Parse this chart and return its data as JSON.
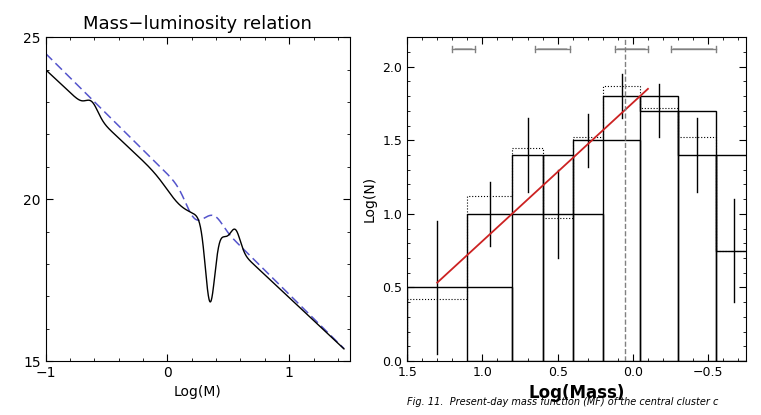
{
  "title_left": "Mass−luminosity relation",
  "xlabel_left": "Log(M)",
  "xlim_left": [
    -1,
    1.5
  ],
  "ylim_left": [
    15,
    25
  ],
  "yticks_left": [
    15,
    20,
    25
  ],
  "xticks_left": [
    -1,
    0,
    1
  ],
  "line1_color": "#000000",
  "line2_color": "#5555cc",
  "title_fontsize": 13,
  "xlabel_right": "Log(Mass)",
  "ylabel_right": "Log(N)",
  "xlim_right": [
    1.5,
    -0.75
  ],
  "ylim_right": [
    0.0,
    2.2
  ],
  "yticks_right": [
    0.0,
    0.5,
    1.0,
    1.5,
    2.0
  ],
  "xticks_right": [
    1.5,
    1.0,
    0.5,
    0.0,
    -0.5
  ],
  "background_color": "#ffffff",
  "caption": "Fig. 11.  Present-day mass function (MF) of the central cluster c",
  "red_line_color": "#cc2222"
}
